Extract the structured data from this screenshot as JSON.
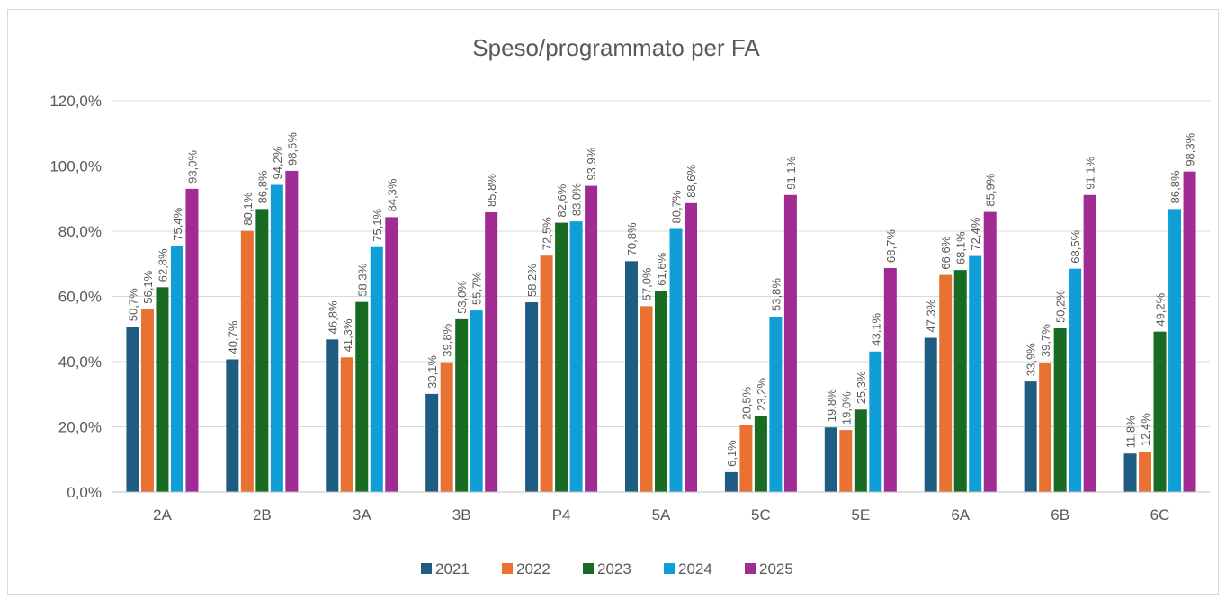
{
  "chart_data": {
    "type": "bar",
    "title": "Speso/programmato per FA",
    "categories": [
      "2A",
      "2B",
      "3A",
      "3B",
      "P4",
      "5A",
      "5C",
      "5E",
      "6A",
      "6B",
      "6C"
    ],
    "series": [
      {
        "name": "2021",
        "color": "#1f5c82",
        "values": [
          50.7,
          40.7,
          46.8,
          30.1,
          58.2,
          70.8,
          6.1,
          19.8,
          47.3,
          33.9,
          11.8
        ],
        "value_labels": [
          "50,7%",
          "40,7%",
          "46,8%",
          "30,1%",
          "58,2%",
          "70,8%",
          "6,1%",
          "19,8%",
          "47,3%",
          "33,9%",
          "11,8%"
        ]
      },
      {
        "name": "2022",
        "color": "#e97132",
        "values": [
          56.1,
          80.1,
          41.3,
          39.8,
          72.5,
          57.0,
          20.5,
          19.0,
          66.6,
          39.7,
          12.4
        ],
        "value_labels": [
          "56,1%",
          "80,1%",
          "41,3%",
          "39,8%",
          "72,5%",
          "57,0%",
          "20,5%",
          "19,0%",
          "66,6%",
          "39,7%",
          "12,4%"
        ]
      },
      {
        "name": "2023",
        "color": "#196b24",
        "values": [
          62.8,
          86.8,
          58.3,
          53.0,
          82.6,
          61.6,
          23.2,
          25.3,
          68.1,
          50.2,
          49.2
        ],
        "value_labels": [
          "62,8%",
          "86,8%",
          "58,3%",
          "53,0%",
          "82,6%",
          "61,6%",
          "23,2%",
          "25,3%",
          "68,1%",
          "50,2%",
          "49,2%"
        ]
      },
      {
        "name": "2024",
        "color": "#0f9ed5",
        "values": [
          75.4,
          94.2,
          75.1,
          55.7,
          83.0,
          80.7,
          53.8,
          43.1,
          72.4,
          68.5,
          86.8
        ],
        "value_labels": [
          "75,4%",
          "94,2%",
          "75,1%",
          "55,7%",
          "83,0%",
          "80,7%",
          "53,8%",
          "43,1%",
          "72,4%",
          "68,5%",
          "86,8%"
        ]
      },
      {
        "name": "2025",
        "color": "#a02b93",
        "values": [
          93.0,
          98.5,
          84.3,
          85.8,
          93.9,
          88.6,
          91.1,
          68.7,
          85.9,
          91.1,
          98.3
        ],
        "value_labels": [
          "93,0%",
          "98,5%",
          "84,3%",
          "85,8%",
          "93,9%",
          "88,6%",
          "91,1%",
          "68,7%",
          "85,9%",
          "91,1%",
          "98,3%"
        ]
      }
    ],
    "ylim": [
      0,
      120
    ],
    "yticks": [
      {
        "value": 0,
        "label": "0,0%"
      },
      {
        "value": 20,
        "label": "20,0%"
      },
      {
        "value": 40,
        "label": "40,0%"
      },
      {
        "value": 60,
        "label": "60,0%"
      },
      {
        "value": 80,
        "label": "80,0%"
      },
      {
        "value": 100,
        "label": "100,0%"
      },
      {
        "value": 120,
        "label": "120,0%"
      }
    ],
    "grid": true,
    "legend": "bottom"
  }
}
